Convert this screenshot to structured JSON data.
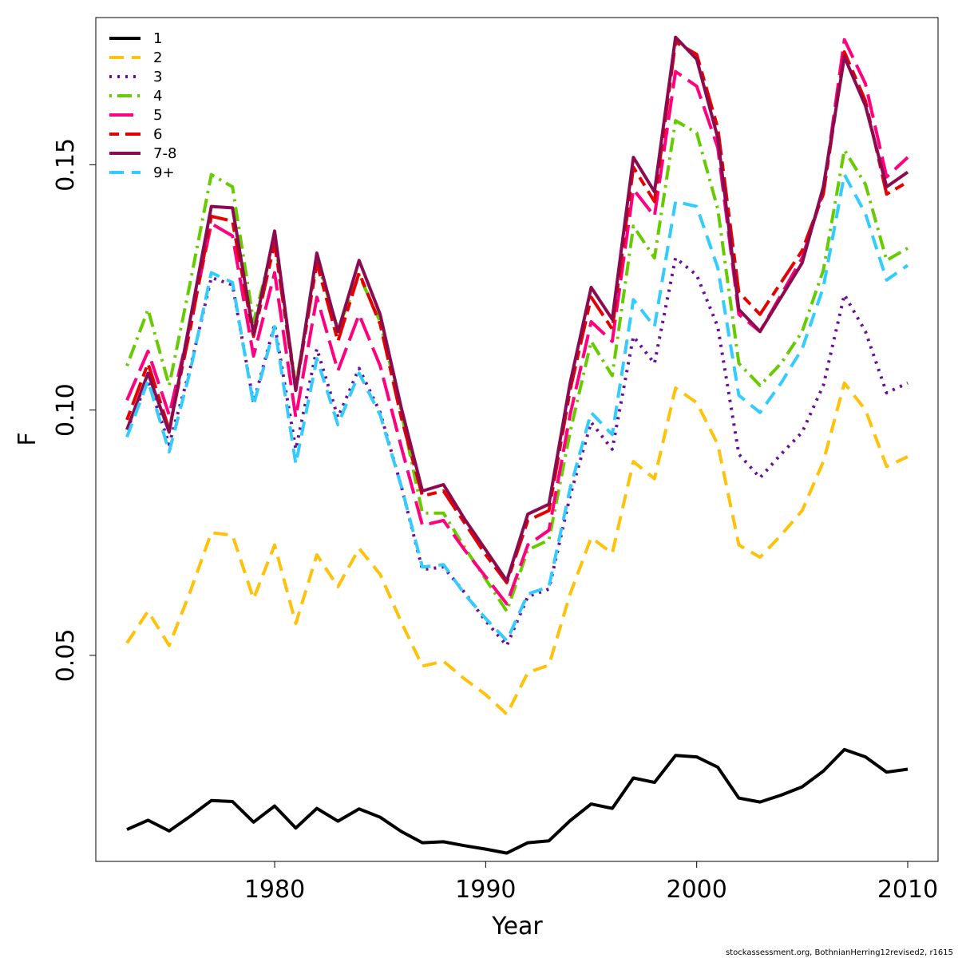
{
  "chart_data": {
    "type": "line",
    "title": "",
    "xlabel": "Year",
    "ylabel": "F",
    "xlim": [
      1973,
      2010
    ],
    "ylim": [
      0.008,
      0.18
    ],
    "x_ticks": [
      1980,
      1990,
      2000,
      2010
    ],
    "x_tick_labels": [
      "1980",
      "1990",
      "2000",
      "2010"
    ],
    "y_ticks": [
      0.05,
      0.1,
      0.15
    ],
    "y_tick_labels": [
      "0.05",
      "0.10",
      "0.15"
    ],
    "grid": false,
    "legend_position": "top-left",
    "x": [
      1973,
      1974,
      1975,
      1976,
      1977,
      1978,
      1979,
      1980,
      1981,
      1982,
      1983,
      1984,
      1985,
      1986,
      1987,
      1988,
      1989,
      1990,
      1991,
      1992,
      1993,
      1994,
      1995,
      1996,
      1997,
      1998,
      1999,
      2000,
      2001,
      2002,
      2003,
      2004,
      2005,
      2006,
      2007,
      2008,
      2009,
      2010
    ],
    "series": [
      {
        "name": "1",
        "color": "#000000",
        "dash": "solid",
        "values": [
          0.0145,
          0.0164,
          0.0142,
          0.0172,
          0.0204,
          0.0202,
          0.016,
          0.0193,
          0.0148,
          0.0188,
          0.0162,
          0.0187,
          0.017,
          0.0141,
          0.0118,
          0.012,
          0.0112,
          0.0105,
          0.0097,
          0.0118,
          0.0122,
          0.0163,
          0.0197,
          0.0188,
          0.025,
          0.0241,
          0.0296,
          0.0293,
          0.0272,
          0.0209,
          0.0201,
          0.0215,
          0.0232,
          0.0264,
          0.0308,
          0.0293,
          0.0262,
          0.0268
        ]
      },
      {
        "name": "2",
        "color": "#ffc20a",
        "dash": "dashed",
        "values": [
          0.0525,
          0.059,
          0.052,
          0.063,
          0.075,
          0.0745,
          0.0615,
          0.0725,
          0.0565,
          0.0705,
          0.064,
          0.0718,
          0.0665,
          0.0568,
          0.0478,
          0.0488,
          0.0452,
          0.042,
          0.038,
          0.0465,
          0.048,
          0.0625,
          0.074,
          0.0708,
          0.0895,
          0.086,
          0.1045,
          0.1015,
          0.093,
          0.0725,
          0.07,
          0.0745,
          0.0795,
          0.0895,
          0.1055,
          0.1,
          0.0885,
          0.0905
        ]
      },
      {
        "name": "3",
        "color": "#6a0d9e",
        "dash": "dotted",
        "values": [
          0.096,
          0.106,
          0.093,
          0.1085,
          0.127,
          0.1255,
          0.1015,
          0.1175,
          0.092,
          0.1125,
          0.0985,
          0.1085,
          0.0995,
          0.0845,
          0.0675,
          0.068,
          0.0628,
          0.057,
          0.052,
          0.062,
          0.0635,
          0.0825,
          0.0975,
          0.092,
          0.115,
          0.1095,
          0.131,
          0.1275,
          0.117,
          0.091,
          0.0862,
          0.091,
          0.0955,
          0.105,
          0.1235,
          0.116,
          0.1035,
          0.1055
        ]
      },
      {
        "name": "4",
        "color": "#66cc00",
        "dash": "dotdash",
        "values": [
          0.109,
          0.1205,
          0.105,
          0.126,
          0.148,
          0.1455,
          0.118,
          0.135,
          0.105,
          0.1305,
          0.1165,
          0.1275,
          0.118,
          0.0995,
          0.079,
          0.079,
          0.072,
          0.0655,
          0.059,
          0.0715,
          0.0735,
          0.0955,
          0.114,
          0.107,
          0.1375,
          0.131,
          0.159,
          0.1565,
          0.141,
          0.1095,
          0.105,
          0.1095,
          0.116,
          0.1285,
          0.153,
          0.146,
          0.1305,
          0.133
        ]
      },
      {
        "name": "5",
        "color": "#ff0080",
        "dash": "longdash",
        "values": [
          0.102,
          0.112,
          0.099,
          0.1175,
          0.138,
          0.1355,
          0.111,
          0.128,
          0.0985,
          0.123,
          0.108,
          0.1195,
          0.109,
          0.0925,
          0.0765,
          0.0775,
          0.0715,
          0.066,
          0.0605,
          0.0725,
          0.0755,
          0.099,
          0.118,
          0.114,
          0.145,
          0.1395,
          0.169,
          0.166,
          0.1535,
          0.1195,
          0.116,
          0.1235,
          0.131,
          0.1445,
          0.1755,
          0.1665,
          0.1475,
          0.1515
        ]
      },
      {
        "name": "6",
        "color": "#e60000",
        "dash": "twodash",
        "values": [
          0.098,
          0.1095,
          0.096,
          0.1165,
          0.1395,
          0.1385,
          0.115,
          0.134,
          0.104,
          0.13,
          0.114,
          0.128,
          0.1175,
          0.0985,
          0.0825,
          0.0835,
          0.077,
          0.0705,
          0.0648,
          0.0775,
          0.0795,
          0.104,
          0.123,
          0.1165,
          0.1495,
          0.1425,
          0.175,
          0.1725,
          0.1575,
          0.124,
          0.1195,
          0.126,
          0.1325,
          0.144,
          0.173,
          0.163,
          0.144,
          0.1465
        ]
      },
      {
        "name": "7-8",
        "color": "#8b0a50",
        "dash": "solid",
        "values": [
          0.096,
          0.1075,
          0.0955,
          0.1185,
          0.1415,
          0.1412,
          0.1155,
          0.1365,
          0.104,
          0.132,
          0.116,
          0.1305,
          0.1195,
          0.1005,
          0.0835,
          0.0848,
          0.0778,
          0.0715,
          0.0652,
          0.0788,
          0.0808,
          0.1055,
          0.125,
          0.1185,
          0.1515,
          0.1445,
          0.176,
          0.1715,
          0.1555,
          0.1205,
          0.116,
          0.123,
          0.13,
          0.1455,
          0.172,
          0.162,
          0.1455,
          0.1485
        ]
      },
      {
        "name": "9+",
        "color": "#33ccff",
        "dash": "dashed",
        "values": [
          0.0945,
          0.106,
          0.0915,
          0.108,
          0.128,
          0.126,
          0.101,
          0.117,
          0.089,
          0.1105,
          0.097,
          0.1075,
          0.099,
          0.0845,
          0.068,
          0.0685,
          0.0625,
          0.0575,
          0.053,
          0.0625,
          0.064,
          0.084,
          0.0995,
          0.095,
          0.1225,
          0.117,
          0.1425,
          0.1415,
          0.129,
          0.103,
          0.0995,
          0.1055,
          0.1125,
          0.125,
          0.148,
          0.14,
          0.1265,
          0.1295
        ]
      }
    ]
  },
  "footer": "stockassessment.org, BothnianHerring12revised2, r1615"
}
